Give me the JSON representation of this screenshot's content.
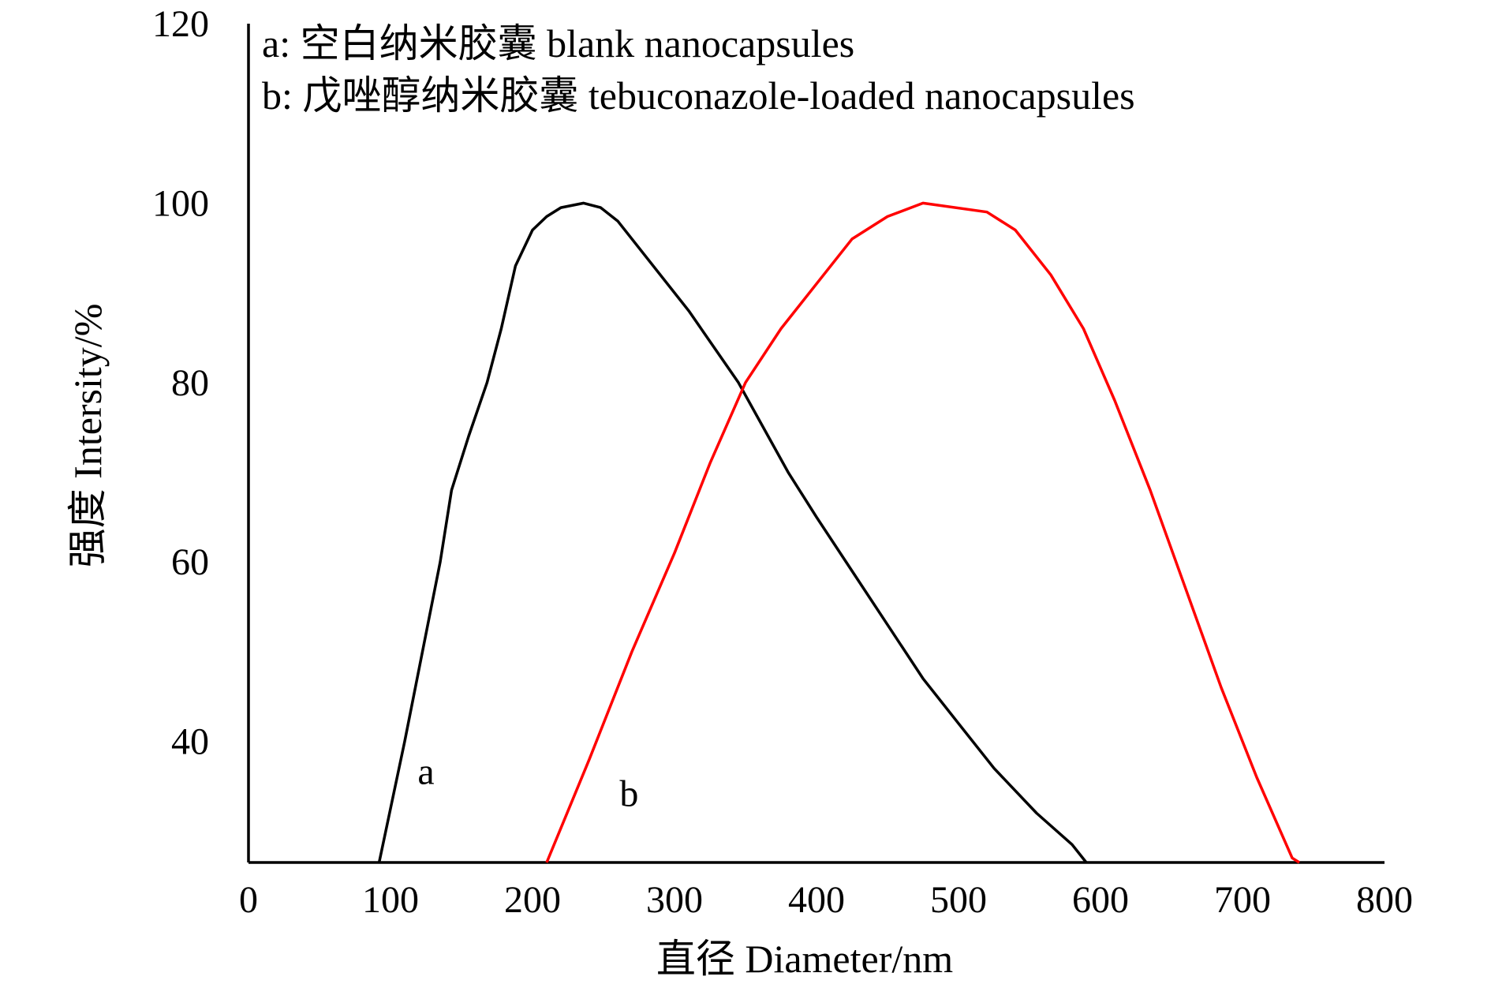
{
  "chart_data": {
    "type": "line",
    "legend": [
      "a: 空白纳米胶囊 blank nanocapsules",
      "b: 戊唑醇纳米胶囊 tebuconazole-loaded nanocapsules"
    ],
    "legend_position": "top-left",
    "xlabel": "直径 Diameter/nm",
    "ylabel": "强度 Intersity/%",
    "xlim": [
      0,
      800
    ],
    "ylim": [
      26.5,
      120
    ],
    "xticks": [
      "0",
      "100",
      "200",
      "300",
      "400",
      "500",
      "600",
      "700",
      "800"
    ],
    "yticks": [
      "40",
      "60",
      "80",
      "100",
      "120"
    ],
    "grid": false,
    "series": [
      {
        "label": "a",
        "color": "#000000",
        "points": [
          [
            92,
            26.5
          ],
          [
            110,
            40
          ],
          [
            125,
            52
          ],
          [
            135,
            60
          ],
          [
            143,
            68
          ],
          [
            155,
            74
          ],
          [
            168,
            80
          ],
          [
            178,
            86
          ],
          [
            188,
            93
          ],
          [
            200,
            97
          ],
          [
            210,
            98.5
          ],
          [
            220,
            99.5
          ],
          [
            236,
            100
          ],
          [
            248,
            99.5
          ],
          [
            260,
            98
          ],
          [
            280,
            94
          ],
          [
            310,
            88
          ],
          [
            345,
            80
          ],
          [
            380,
            70
          ],
          [
            400,
            65
          ],
          [
            425,
            59
          ],
          [
            450,
            53
          ],
          [
            475,
            47
          ],
          [
            500,
            42
          ],
          [
            525,
            37
          ],
          [
            555,
            32
          ],
          [
            580,
            28.5
          ],
          [
            590,
            26.5
          ]
        ]
      },
      {
        "label": "b",
        "color": "#ff0000",
        "points": [
          [
            210,
            26.5
          ],
          [
            240,
            38
          ],
          [
            270,
            50
          ],
          [
            300,
            61
          ],
          [
            325,
            71
          ],
          [
            350,
            80
          ],
          [
            375,
            86
          ],
          [
            400,
            91
          ],
          [
            425,
            96
          ],
          [
            450,
            98.5
          ],
          [
            475,
            100
          ],
          [
            520,
            99
          ],
          [
            540,
            97
          ],
          [
            565,
            92
          ],
          [
            588,
            86
          ],
          [
            610,
            78
          ],
          [
            635,
            68
          ],
          [
            660,
            57
          ],
          [
            685,
            46
          ],
          [
            710,
            36
          ],
          [
            735,
            27
          ],
          [
            740,
            26.5
          ]
        ]
      }
    ],
    "curve_labels": [
      {
        "text": "a",
        "x": 125,
        "y": 36.5
      },
      {
        "text": "b",
        "x": 268,
        "y": 34
      }
    ]
  }
}
